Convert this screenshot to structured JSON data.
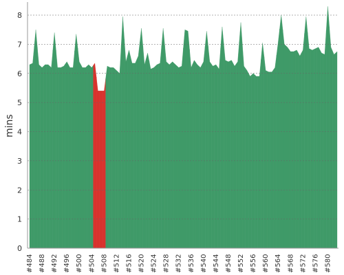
{
  "chart_data": {
    "type": "area",
    "y_label": "mins",
    "categories": [
      "#484",
      null,
      null,
      null,
      "#488",
      null,
      null,
      null,
      "#492",
      null,
      null,
      null,
      "#496",
      null,
      null,
      null,
      "#500",
      null,
      null,
      null,
      "#504",
      null,
      null,
      null,
      "#508",
      null,
      null,
      null,
      "#512",
      null,
      null,
      null,
      "#516",
      null,
      null,
      null,
      "#520",
      null,
      null,
      null,
      "#524",
      null,
      null,
      null,
      "#528",
      null,
      null,
      null,
      "#532",
      null,
      null,
      null,
      "#536",
      null,
      null,
      null,
      "#540",
      null,
      null,
      null,
      "#544",
      null,
      null,
      null,
      "#548",
      null,
      null,
      null,
      "#552",
      null,
      null,
      null,
      "#556",
      null,
      null,
      null,
      "#560",
      null,
      null,
      null,
      "#564",
      null,
      null,
      null,
      "#568",
      null,
      null,
      null,
      "#572",
      null,
      null,
      null,
      "#576",
      null,
      null,
      null,
      "#580",
      null,
      null,
      null
    ],
    "values": [
      6.3,
      6.35,
      7.5,
      6.3,
      6.2,
      6.3,
      6.3,
      6.2,
      7.4,
      6.2,
      6.2,
      6.25,
      6.4,
      6.2,
      6.2,
      7.35,
      6.4,
      6.2,
      6.2,
      6.3,
      6.2,
      6.35,
      5.4,
      5.4,
      5.4,
      6.25,
      6.2,
      6.2,
      6.1,
      6.0,
      7.95,
      6.4,
      6.8,
      6.35,
      6.35,
      6.6,
      7.55,
      6.3,
      6.7,
      6.15,
      6.2,
      6.3,
      6.35,
      7.55,
      6.4,
      6.3,
      6.4,
      6.3,
      6.2,
      6.25,
      7.5,
      7.45,
      6.2,
      6.45,
      6.3,
      6.2,
      6.4,
      7.45,
      6.4,
      6.25,
      6.3,
      6.15,
      7.6,
      6.45,
      6.4,
      6.45,
      6.25,
      6.4,
      7.75,
      6.25,
      6.1,
      5.9,
      6.0,
      5.9,
      5.9,
      7.05,
      6.1,
      6.05,
      6.05,
      6.2,
      7.05,
      8.0,
      7.0,
      6.9,
      6.75,
      6.75,
      6.8,
      6.6,
      6.8,
      7.95,
      6.85,
      6.8,
      6.85,
      6.9,
      6.7,
      6.65,
      8.3,
      6.9,
      6.65,
      6.75
    ],
    "colors": [
      "#3f9a68",
      "#3f9a68",
      "#3f9a68",
      "#3f9a68",
      "#3f9a68",
      "#3f9a68",
      "#3f9a68",
      "#3f9a68",
      "#3f9a68",
      "#3f9a68",
      "#3f9a68",
      "#3f9a68",
      "#3f9a68",
      "#3f9a68",
      "#3f9a68",
      "#3f9a68",
      "#3f9a68",
      "#3f9a68",
      "#3f9a68",
      "#3f9a68",
      "#3f9a68",
      "#d8332e",
      "#d8332e",
      "#d8332e",
      "#d8332e",
      "#3f9a68",
      "#3f9a68",
      "#3f9a68",
      "#3f9a68",
      "#3f9a68",
      "#3f9a68",
      "#3f9a68",
      "#3f9a68",
      "#3f9a68",
      "#3f9a68",
      "#3f9a68",
      "#3f9a68",
      "#3f9a68",
      "#3f9a68",
      "#3f9a68",
      "#3f9a68",
      "#3f9a68",
      "#3f9a68",
      "#3f9a68",
      "#3f9a68",
      "#3f9a68",
      "#3f9a68",
      "#3f9a68",
      "#3f9a68",
      "#3f9a68",
      "#3f9a68",
      "#3f9a68",
      "#3f9a68",
      "#3f9a68",
      "#3f9a68",
      "#3f9a68",
      "#3f9a68",
      "#3f9a68",
      "#3f9a68",
      "#3f9a68",
      "#3f9a68",
      "#3f9a68",
      "#3f9a68",
      "#3f9a68",
      "#3f9a68",
      "#3f9a68",
      "#3f9a68",
      "#3f9a68",
      "#3f9a68",
      "#3f9a68",
      "#3f9a68",
      "#3f9a68",
      "#3f9a68",
      "#3f9a68",
      "#3f9a68",
      "#3f9a68",
      "#3f9a68",
      "#3f9a68",
      "#3f9a68",
      "#3f9a68",
      "#3f9a68",
      "#3f9a68",
      "#3f9a68",
      "#3f9a68",
      "#3f9a68",
      "#3f9a68",
      "#3f9a68",
      "#3f9a68",
      "#3f9a68",
      "#3f9a68",
      "#3f9a68",
      "#3f9a68",
      "#3f9a68",
      "#3f9a68",
      "#3f9a68",
      "#3f9a68",
      "#3f9a68",
      "#3f9a68",
      "#3f9a68",
      "#3f9a68"
    ],
    "ylim": [
      0,
      8.4
    ],
    "yticks": [
      0,
      1,
      2,
      3,
      4,
      5,
      6,
      7,
      8
    ],
    "grid": true
  }
}
